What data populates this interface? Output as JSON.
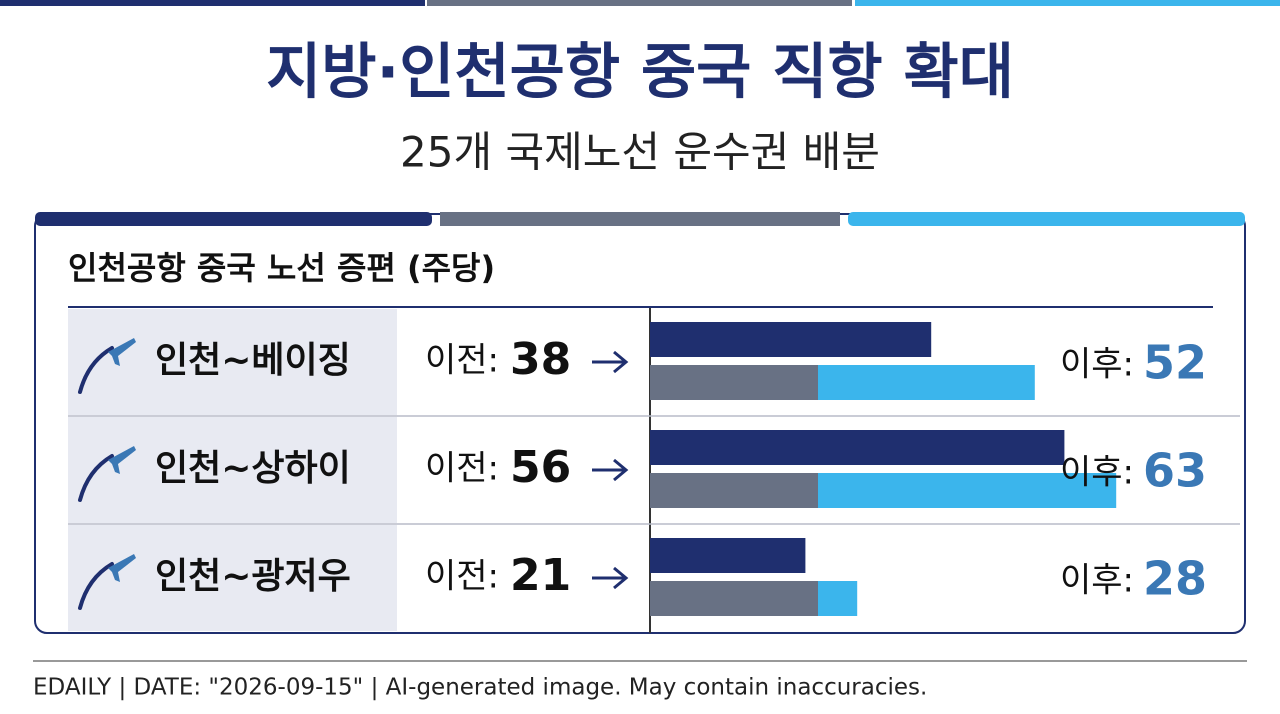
{
  "header": {
    "title": "지방·인천공항 중국 직항 확대",
    "subtitle": "25개 국제노선 운수권 배분"
  },
  "chart_data": {
    "type": "bar",
    "title": "인천공항 중국 노선 증편 (주당)",
    "categories": [
      "인천~베이징",
      "인천~상하이",
      "인천~광저우"
    ],
    "series": [
      {
        "name": "이전:",
        "color": "#1f2f6f",
        "values": [
          38,
          56,
          21
        ]
      },
      {
        "name": "이후:",
        "color": "#3bb5ec",
        "values": [
          52,
          63,
          28
        ]
      }
    ]
  },
  "footer": "EDAILY | DATE: \"2026-09-15\" | AI-generated image. May contain inaccuracies."
}
